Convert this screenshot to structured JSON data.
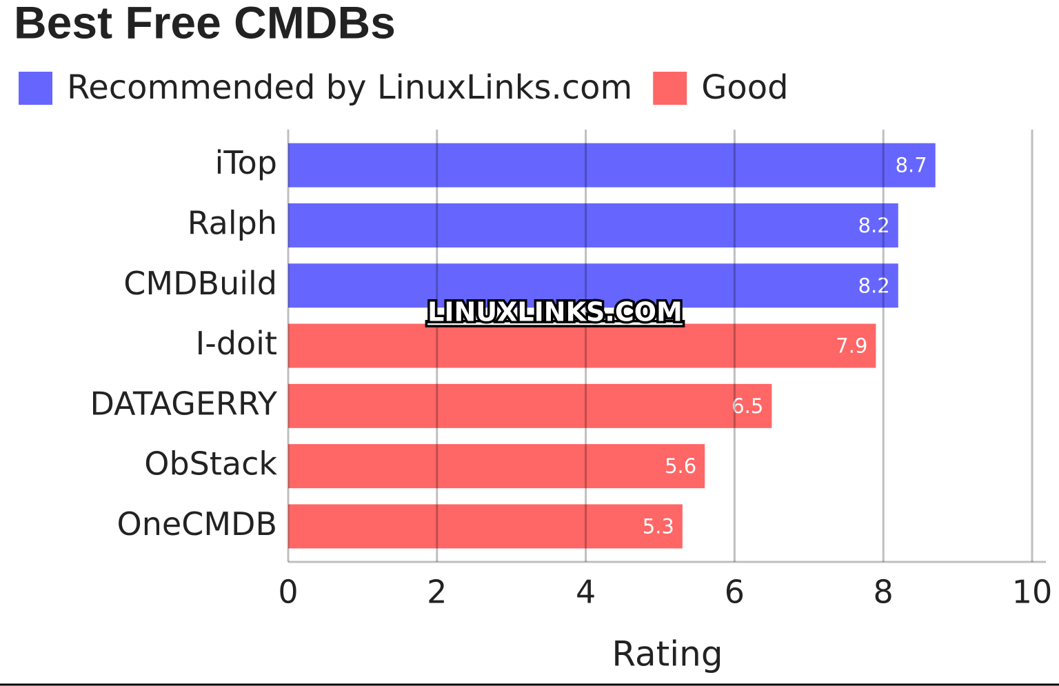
{
  "chart_data": {
    "type": "hbar",
    "title": "Best Free CMDBs",
    "watermark": "LINUXLINKS.COM",
    "x_label": "Rating",
    "categories": [
      "iTop",
      "Ralph",
      "CMDBuild",
      "I-doit",
      "DATAGERRY",
      "ObStack",
      "OneCMDB"
    ],
    "series": [
      {
        "name": "Recommended by LinuxLinks.com",
        "color": "#6666ff",
        "values": [
          8.7,
          8.2,
          8.2,
          null,
          null,
          null,
          null
        ]
      },
      {
        "name": "Good",
        "color": "#ff6666",
        "values": [
          null,
          null,
          null,
          7.9,
          6.5,
          5.6,
          5.3
        ]
      }
    ],
    "xlim": [
      0,
      10
    ],
    "xticks": [
      0,
      2,
      4,
      6,
      8,
      10
    ],
    "grid": true,
    "legend": "top"
  }
}
